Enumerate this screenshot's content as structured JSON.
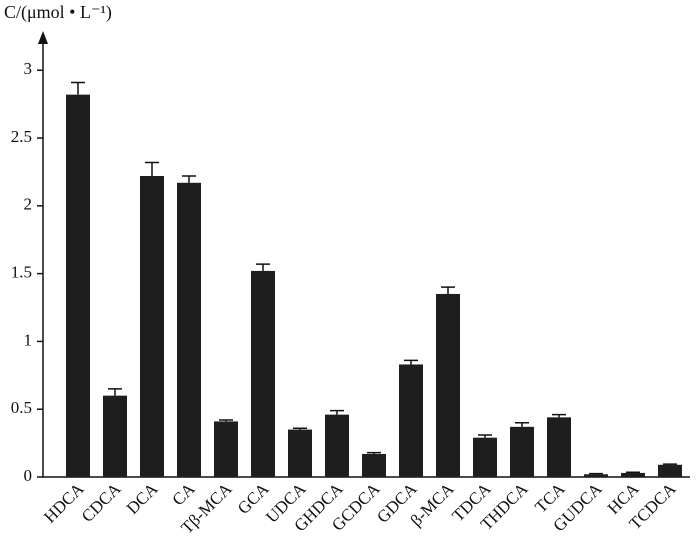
{
  "chart_data": {
    "type": "bar",
    "y_label": "C/(μmol • L⁻¹)",
    "categories": [
      "HDCA",
      "CDCA",
      "DCA",
      "CA",
      "Tβ-MCA",
      "GCA",
      "UDCA",
      "GHDCA",
      "GCDCA",
      "GDCA",
      "β-MCA",
      "TDCA",
      "THDCA",
      "TCA",
      "GUDCA",
      "HCA",
      "TCDCA"
    ],
    "values": [
      2.82,
      0.6,
      2.22,
      2.17,
      0.41,
      1.52,
      0.35,
      0.46,
      0.17,
      0.83,
      1.35,
      0.29,
      0.37,
      0.44,
      0.02,
      0.03,
      0.09
    ],
    "errors": [
      0.09,
      0.05,
      0.1,
      0.05,
      0.01,
      0.05,
      0.01,
      0.03,
      0.01,
      0.03,
      0.05,
      0.02,
      0.03,
      0.02,
      0.005,
      0.005,
      0.005
    ],
    "color": "#1e1e1e",
    "ylim": [
      0,
      3.26
    ],
    "yticks": [
      0,
      0.5,
      1,
      1.5,
      2,
      2.5,
      3
    ],
    "grid": false
  }
}
